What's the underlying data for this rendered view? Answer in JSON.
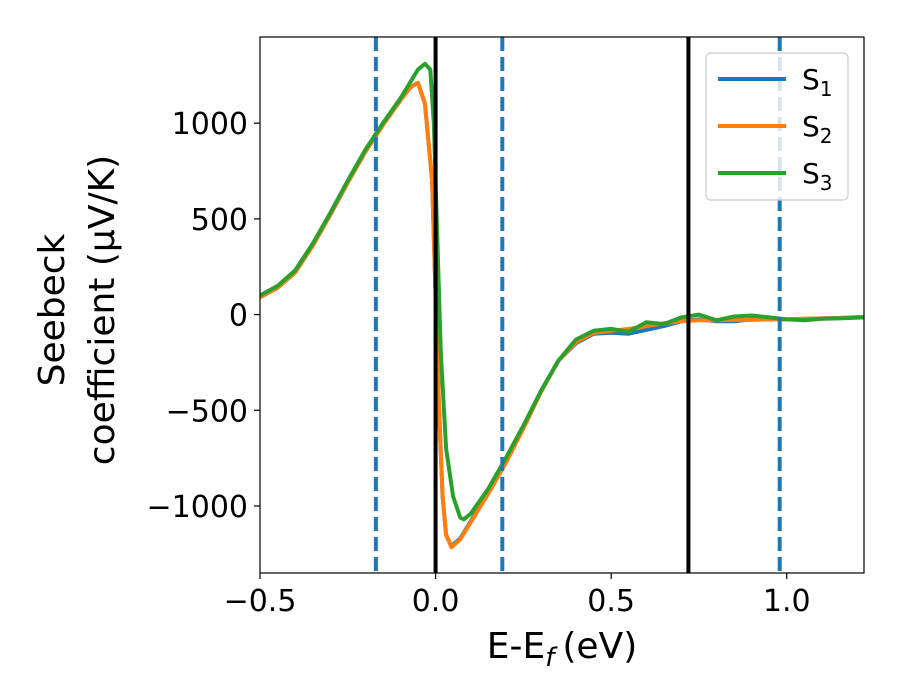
{
  "chart_data": {
    "type": "line",
    "xlabel": "E-E",
    "xlabel_sub": "f",
    "xlabel_unit": "(eV)",
    "ylabel_line1": "Seebeck",
    "ylabel_line2": "coefficient  (μV/K)",
    "xlim": [
      -0.5,
      1.22
    ],
    "ylim": [
      -1350,
      1450
    ],
    "xticks": [
      -0.5,
      0.0,
      0.5,
      1.0
    ],
    "xtick_labels": [
      "−0.5",
      "0.0",
      "0.5",
      "1.0"
    ],
    "yticks": [
      -1000,
      -500,
      0,
      500,
      1000
    ],
    "ytick_labels": [
      "−1000",
      "−500",
      "0",
      "500",
      "1000"
    ],
    "grid": false,
    "legend_position": "top-right",
    "vlines_solid": [
      0.0,
      0.72
    ],
    "vlines_dashed": [
      -0.17,
      0.19,
      0.98
    ],
    "series": [
      {
        "name": "S",
        "sub": "1",
        "color": "#1f77b4",
        "x": [
          -0.5,
          -0.45,
          -0.4,
          -0.35,
          -0.3,
          -0.25,
          -0.2,
          -0.15,
          -0.1,
          -0.07,
          -0.05,
          -0.03,
          -0.01,
          0.0,
          0.01,
          0.02,
          0.03,
          0.045,
          0.07,
          0.1,
          0.15,
          0.2,
          0.25,
          0.3,
          0.35,
          0.4,
          0.45,
          0.5,
          0.55,
          0.6,
          0.65,
          0.7,
          0.75,
          0.8,
          0.85,
          0.9,
          0.95,
          1.0,
          1.05,
          1.1,
          1.15,
          1.22
        ],
        "y": [
          90,
          140,
          220,
          360,
          520,
          690,
          850,
          990,
          1120,
          1190,
          1210,
          1100,
          700,
          100,
          -500,
          -950,
          -1150,
          -1210,
          -1170,
          -1080,
          -930,
          -770,
          -590,
          -400,
          -240,
          -150,
          -100,
          -95,
          -100,
          -80,
          -60,
          -35,
          -25,
          -35,
          -35,
          -25,
          -25,
          -25,
          -22,
          -20,
          -18,
          -12
        ]
      },
      {
        "name": "S",
        "sub": "2",
        "color": "#ff7f0e",
        "x": [
          -0.5,
          -0.45,
          -0.4,
          -0.35,
          -0.3,
          -0.25,
          -0.2,
          -0.15,
          -0.1,
          -0.07,
          -0.05,
          -0.03,
          -0.01,
          0.0,
          0.01,
          0.02,
          0.03,
          0.045,
          0.07,
          0.1,
          0.15,
          0.2,
          0.25,
          0.3,
          0.35,
          0.4,
          0.45,
          0.5,
          0.55,
          0.6,
          0.65,
          0.7,
          0.75,
          0.8,
          0.85,
          0.9,
          0.95,
          1.0,
          1.05,
          1.1,
          1.15,
          1.22
        ],
        "y": [
          90,
          140,
          220,
          360,
          520,
          690,
          850,
          990,
          1120,
          1190,
          1210,
          1100,
          700,
          100,
          -500,
          -950,
          -1150,
          -1215,
          -1175,
          -1085,
          -935,
          -775,
          -595,
          -405,
          -240,
          -145,
          -95,
          -85,
          -75,
          -60,
          -45,
          -35,
          -30,
          -30,
          -28,
          -28,
          -25,
          -25,
          -22,
          -20,
          -18,
          -12
        ]
      },
      {
        "name": "S",
        "sub": "3",
        "color": "#2ca02c",
        "x": [
          -0.5,
          -0.45,
          -0.4,
          -0.35,
          -0.3,
          -0.25,
          -0.2,
          -0.15,
          -0.1,
          -0.07,
          -0.05,
          -0.03,
          -0.015,
          -0.005,
          0.005,
          0.015,
          0.03,
          0.05,
          0.07,
          0.08,
          0.1,
          0.15,
          0.2,
          0.25,
          0.3,
          0.35,
          0.4,
          0.45,
          0.5,
          0.55,
          0.6,
          0.65,
          0.7,
          0.75,
          0.8,
          0.85,
          0.9,
          0.95,
          1.0,
          1.05,
          1.1,
          1.15,
          1.22
        ],
        "y": [
          100,
          150,
          230,
          370,
          530,
          700,
          860,
          1000,
          1130,
          1220,
          1280,
          1310,
          1280,
          1000,
          400,
          -200,
          -700,
          -950,
          -1060,
          -1070,
          -1040,
          -910,
          -750,
          -580,
          -400,
          -240,
          -130,
          -85,
          -75,
          -90,
          -40,
          -50,
          -15,
          0,
          -30,
          -10,
          -5,
          -15,
          -25,
          -30,
          -22,
          -20,
          -15
        ]
      }
    ]
  }
}
